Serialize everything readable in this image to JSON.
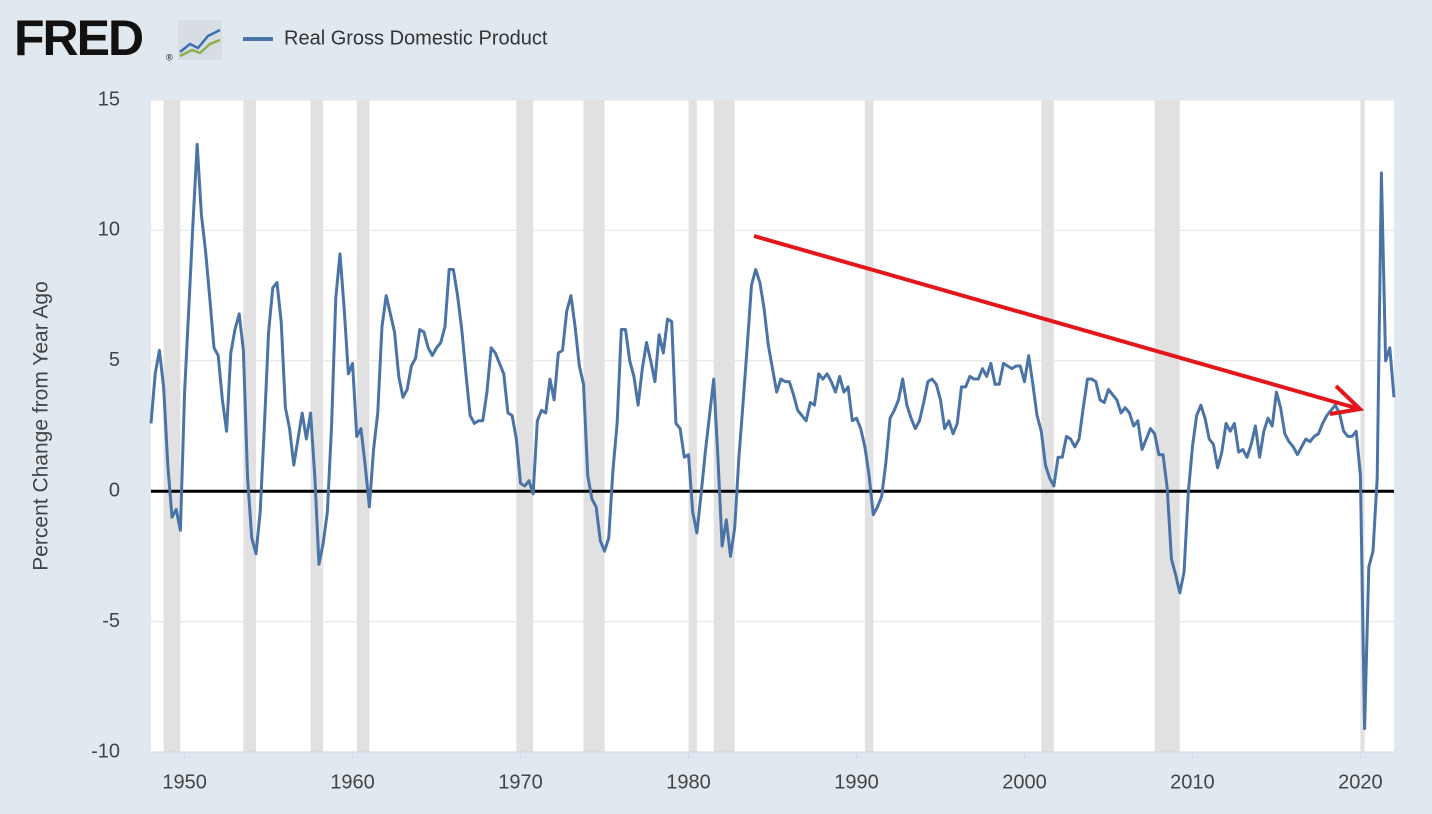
{
  "header": {
    "logo": "FRED",
    "logo_mark": "®"
  },
  "chart_data": {
    "type": "line",
    "y_axis_label": "Percent Change from Year Ago",
    "xlim": [
      1948,
      2022
    ],
    "ylim": [
      -10,
      15
    ],
    "xticks": [
      1950,
      1960,
      1970,
      1980,
      1990,
      2000,
      2010,
      2020
    ],
    "yticks": [
      -10,
      -5,
      0,
      5,
      10,
      15
    ],
    "grid": true,
    "recessions": [
      [
        1948.75,
        1949.75
      ],
      [
        1953.5,
        1954.25
      ],
      [
        1957.5,
        1958.25
      ],
      [
        1960.25,
        1961.0
      ],
      [
        1969.75,
        1970.75
      ],
      [
        1973.75,
        1975.0
      ],
      [
        1980.0,
        1980.5
      ],
      [
        1981.5,
        1982.75
      ],
      [
        1990.5,
        1991.0
      ],
      [
        2001.0,
        2001.75
      ],
      [
        2007.75,
        2009.25
      ],
      [
        2020.0,
        2020.25
      ]
    ],
    "x": [
      1948,
      1948.25,
      1948.5,
      1948.75,
      1949,
      1949.25,
      1949.5,
      1949.75,
      1950,
      1950.25,
      1950.5,
      1950.75,
      1951,
      1951.25,
      1951.5,
      1951.75,
      1952,
      1952.25,
      1952.5,
      1952.75,
      1953,
      1953.25,
      1953.5,
      1953.75,
      1954,
      1954.25,
      1954.5,
      1954.75,
      1955,
      1955.25,
      1955.5,
      1955.75,
      1956,
      1956.25,
      1956.5,
      1956.75,
      1957,
      1957.25,
      1957.5,
      1957.75,
      1958,
      1958.25,
      1958.5,
      1958.75,
      1959,
      1959.25,
      1959.5,
      1959.75,
      1960,
      1960.25,
      1960.5,
      1960.75,
      1961,
      1961.25,
      1961.5,
      1961.75,
      1962,
      1962.25,
      1962.5,
      1962.75,
      1963,
      1963.25,
      1963.5,
      1963.75,
      1964,
      1964.25,
      1964.5,
      1964.75,
      1965,
      1965.25,
      1965.5,
      1965.75,
      1966,
      1966.25,
      1966.5,
      1966.75,
      1967,
      1967.25,
      1967.5,
      1967.75,
      1968,
      1968.25,
      1968.5,
      1968.75,
      1969,
      1969.25,
      1969.5,
      1969.75,
      1970,
      1970.25,
      1970.5,
      1970.75,
      1971,
      1971.25,
      1971.5,
      1971.75,
      1972,
      1972.25,
      1972.5,
      1972.75,
      1973,
      1973.25,
      1973.5,
      1973.75,
      1974,
      1974.25,
      1974.5,
      1974.75,
      1975,
      1975.25,
      1975.5,
      1975.75,
      1976,
      1976.25,
      1976.5,
      1976.75,
      1977,
      1977.25,
      1977.5,
      1977.75,
      1978,
      1978.25,
      1978.5,
      1978.75,
      1979,
      1979.25,
      1979.5,
      1979.75,
      1980,
      1980.25,
      1980.5,
      1980.75,
      1981,
      1981.25,
      1981.5,
      1981.75,
      1982,
      1982.25,
      1982.5,
      1982.75,
      1983,
      1983.25,
      1983.5,
      1983.75,
      1984,
      1984.25,
      1984.5,
      1984.75,
      1985,
      1985.25,
      1985.5,
      1985.75,
      1986,
      1986.25,
      1986.5,
      1986.75,
      1987,
      1987.25,
      1987.5,
      1987.75,
      1988,
      1988.25,
      1988.5,
      1988.75,
      1989,
      1989.25,
      1989.5,
      1989.75,
      1990,
      1990.25,
      1990.5,
      1990.75,
      1991,
      1991.25,
      1991.5,
      1991.75,
      1992,
      1992.25,
      1992.5,
      1992.75,
      1993,
      1993.25,
      1993.5,
      1993.75,
      1994,
      1994.25,
      1994.5,
      1994.75,
      1995,
      1995.25,
      1995.5,
      1995.75,
      1996,
      1996.25,
      1996.5,
      1996.75,
      1997,
      1997.25,
      1997.5,
      1997.75,
      1998,
      1998.25,
      1998.5,
      1998.75,
      1999,
      1999.25,
      1999.5,
      1999.75,
      2000,
      2000.25,
      2000.5,
      2000.75,
      2001,
      2001.25,
      2001.5,
      2001.75,
      2002,
      2002.25,
      2002.5,
      2002.75,
      2003,
      2003.25,
      2003.5,
      2003.75,
      2004,
      2004.25,
      2004.5,
      2004.75,
      2005,
      2005.25,
      2005.5,
      2005.75,
      2006,
      2006.25,
      2006.5,
      2006.75,
      2007,
      2007.25,
      2007.5,
      2007.75,
      2008,
      2008.25,
      2008.5,
      2008.75,
      2009,
      2009.25,
      2009.5,
      2009.75,
      2010,
      2010.25,
      2010.5,
      2010.75,
      2011,
      2011.25,
      2011.5,
      2011.75,
      2012,
      2012.25,
      2012.5,
      2012.75,
      2013,
      2013.25,
      2013.5,
      2013.75,
      2014,
      2014.25,
      2014.5,
      2014.75,
      2015,
      2015.25,
      2015.5,
      2015.75,
      2016,
      2016.25,
      2016.5,
      2016.75,
      2017,
      2017.25,
      2017.5,
      2017.75,
      2018,
      2018.25,
      2018.5,
      2018.75,
      2019,
      2019.25,
      2019.5,
      2019.75,
      2020,
      2020.25,
      2020.5,
      2020.75,
      2021,
      2021.25,
      2021.5,
      2021.75,
      2022
    ],
    "series": [
      {
        "name": "Real Gross Domestic Product",
        "color": "#4b74a6",
        "values": [
          2.6,
          4.5,
          5.4,
          4.0,
          1.0,
          -1.0,
          -0.7,
          -1.5,
          3.8,
          7.0,
          10.3,
          13.3,
          10.6,
          9.2,
          7.4,
          5.5,
          5.2,
          3.5,
          2.3,
          5.3,
          6.2,
          6.8,
          5.4,
          0.5,
          -1.8,
          -2.4,
          -0.8,
          2.5,
          6.1,
          7.8,
          8.0,
          6.5,
          3.2,
          2.4,
          1.0,
          2.0,
          3.0,
          2.0,
          3.0,
          0.6,
          -2.8,
          -2.0,
          -0.8,
          2.5,
          7.4,
          9.1,
          7.0,
          4.5,
          4.9,
          2.1,
          2.4,
          1.0,
          -0.6,
          1.6,
          3.0,
          6.3,
          7.5,
          6.8,
          6.1,
          4.4,
          3.6,
          3.9,
          4.8,
          5.1,
          6.2,
          6.1,
          5.5,
          5.2,
          5.5,
          5.7,
          6.3,
          8.5,
          8.5,
          7.5,
          6.2,
          4.5,
          2.9,
          2.6,
          2.7,
          2.7,
          3.8,
          5.5,
          5.3,
          4.9,
          4.5,
          3.0,
          2.9,
          2.0,
          0.3,
          0.2,
          0.4,
          -0.1,
          2.7,
          3.1,
          3.0,
          4.3,
          3.5,
          5.3,
          5.4,
          6.9,
          7.5,
          6.3,
          4.8,
          4.1,
          0.6,
          -0.3,
          -0.6,
          -1.9,
          -2.3,
          -1.8,
          0.8,
          2.6,
          6.2,
          6.2,
          5.0,
          4.4,
          3.3,
          4.7,
          5.7,
          5.0,
          4.2,
          6.0,
          5.3,
          6.6,
          6.5,
          2.6,
          2.4,
          1.3,
          1.4,
          -0.8,
          -1.6,
          -0.1,
          1.5,
          2.9,
          4.3,
          1.3,
          -2.1,
          -1.1,
          -2.5,
          -1.4,
          1.3,
          3.4,
          5.6,
          7.9,
          8.5,
          8.0,
          7.0,
          5.6,
          4.7,
          3.8,
          4.3,
          4.2,
          4.2,
          3.7,
          3.1,
          2.9,
          2.7,
          3.4,
          3.3,
          4.5,
          4.3,
          4.5,
          4.2,
          3.8,
          4.4,
          3.8,
          4.0,
          2.7,
          2.8,
          2.4,
          1.7,
          0.6,
          -0.9,
          -0.6,
          -0.2,
          1.1,
          2.8,
          3.1,
          3.5,
          4.3,
          3.3,
          2.8,
          2.4,
          2.7,
          3.4,
          4.2,
          4.3,
          4.1,
          3.5,
          2.4,
          2.7,
          2.2,
          2.6,
          4.0,
          4.0,
          4.4,
          4.3,
          4.3,
          4.7,
          4.4,
          4.9,
          4.1,
          4.1,
          4.9,
          4.8,
          4.7,
          4.8,
          4.8,
          4.2,
          5.2,
          4.1,
          2.9,
          2.3,
          1.0,
          0.5,
          0.2,
          1.3,
          1.3,
          2.1,
          2.0,
          1.7,
          2.0,
          3.2,
          4.3,
          4.3,
          4.2,
          3.5,
          3.4,
          3.9,
          3.7,
          3.5,
          3.0,
          3.2,
          3.0,
          2.5,
          2.7,
          1.6,
          2.0,
          2.4,
          2.2,
          1.4,
          1.4,
          0.1,
          -2.6,
          -3.2,
          -3.9,
          -3.1,
          -0.1,
          1.7,
          2.9,
          3.3,
          2.8,
          2.0,
          1.8,
          0.9,
          1.5,
          2.6,
          2.3,
          2.6,
          1.5,
          1.6,
          1.3,
          1.8,
          2.5,
          1.3,
          2.3,
          2.8,
          2.5,
          3.8,
          3.2,
          2.2,
          1.9,
          1.7,
          1.4,
          1.7,
          2.0,
          1.9,
          2.1,
          2.2,
          2.6,
          2.9,
          3.1,
          3.3,
          3.0,
          2.3,
          2.1,
          2.1,
          2.3,
          0.6,
          -9.1,
          -2.9,
          -2.3,
          0.5,
          12.2,
          5.0,
          5.5,
          3.6
        ]
      }
    ]
  }
}
